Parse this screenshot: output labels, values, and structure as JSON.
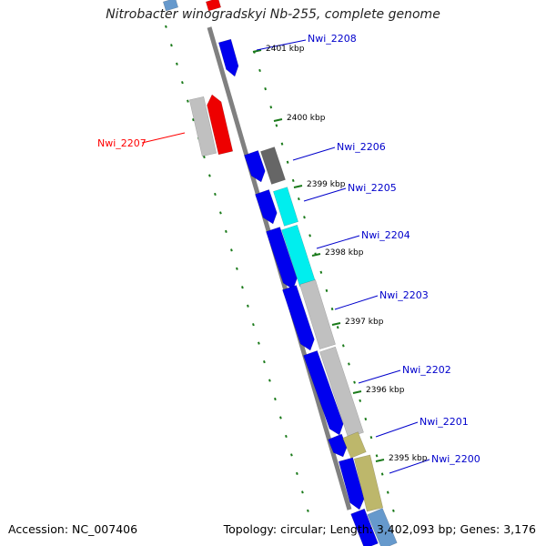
{
  "title": "Nitrobacter winogradskyi Nb-255, complete genome",
  "accession_text": "Accession: NC_007406",
  "summary_text": "Topology: circular; Length: 3,402,093 bp; Genes: 3,176",
  "colors": {
    "backbone": "#808080",
    "ruler_ticks": "#1a7a1a",
    "label_default": "#0000cc",
    "label_highlight": "#ff0000",
    "gene_blue": "#0000ee",
    "gene_red": "#ee0000",
    "gene_gray": "#c0c0c0",
    "gene_darkgray": "#666666",
    "gene_cyan": "#00eeee",
    "gene_khaki": "#bdb76b",
    "gene_lightblue": "#6699cc"
  },
  "ruler_labels": [
    "2401 kbp",
    "2400 kbp",
    "2399 kbp",
    "2398 kbp",
    "2397 kbp",
    "2396 kbp",
    "2395 kbp"
  ],
  "gene_labels": [
    {
      "text": "Nwi_2208",
      "color": "#0000cc"
    },
    {
      "text": "Nwi_2207",
      "color": "#ff0000"
    },
    {
      "text": "Nwi_2206",
      "color": "#0000cc"
    },
    {
      "text": "Nwi_2205",
      "color": "#0000cc"
    },
    {
      "text": "Nwi_2204",
      "color": "#0000cc"
    },
    {
      "text": "Nwi_2203",
      "color": "#0000cc"
    },
    {
      "text": "Nwi_2202",
      "color": "#0000cc"
    },
    {
      "text": "Nwi_2201",
      "color": "#0000cc"
    },
    {
      "text": "Nwi_2200",
      "color": "#0000cc"
    }
  ],
  "gene_features": [
    {
      "track": "left-outer",
      "color": "gene_lightblue"
    },
    {
      "track": "left-inner",
      "color": "gene_red"
    },
    {
      "track": "left-outer",
      "color": "gene_gray"
    },
    {
      "track": "left-inner",
      "color": "gene_red"
    },
    {
      "track": "right-inner",
      "color": "gene_blue"
    },
    {
      "track": "right-inner",
      "color": "gene_blue"
    },
    {
      "track": "right-outer",
      "color": "gene_darkgray"
    },
    {
      "track": "right-inner",
      "color": "gene_blue"
    },
    {
      "track": "right-outer",
      "color": "gene_cyan"
    },
    {
      "track": "right-inner",
      "color": "gene_blue"
    },
    {
      "track": "right-outer",
      "color": "gene_cyan"
    },
    {
      "track": "right-inner",
      "color": "gene_blue"
    },
    {
      "track": "right-outer",
      "color": "gene_gray"
    },
    {
      "track": "right-inner",
      "color": "gene_blue"
    },
    {
      "track": "right-outer",
      "color": "gene_gray"
    },
    {
      "track": "right-inner",
      "color": "gene_blue"
    },
    {
      "track": "right-outer",
      "color": "gene_khaki"
    },
    {
      "track": "right-inner",
      "color": "gene_blue"
    },
    {
      "track": "right-outer",
      "color": "gene_khaki"
    },
    {
      "track": "right-inner",
      "color": "gene_blue"
    },
    {
      "track": "right-outer",
      "color": "gene_lightblue"
    }
  ]
}
